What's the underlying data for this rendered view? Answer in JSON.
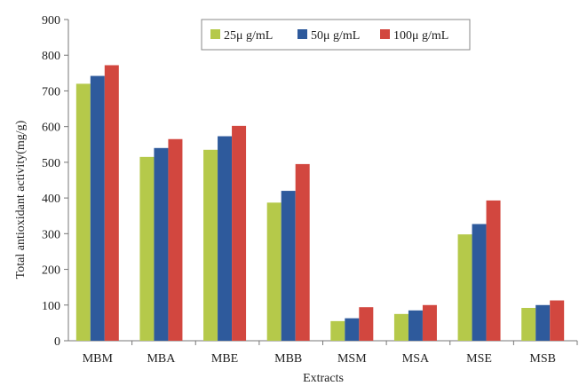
{
  "chart_data": {
    "type": "bar",
    "title": "",
    "xlabel": "Extracts",
    "ylabel": "Total antioxidant activity(mg/g)",
    "categories": [
      "MBM",
      "MBA",
      "MBE",
      "MBB",
      "MSM",
      "MSA",
      "MSE",
      "MSB"
    ],
    "series": [
      {
        "name": "25μ g/mL",
        "color": "#b5c94a",
        "values": [
          720,
          515,
          535,
          387,
          55,
          75,
          298,
          92
        ]
      },
      {
        "name": "50μ g/mL",
        "color": "#2e5a9c",
        "values": [
          742,
          540,
          573,
          420,
          63,
          85,
          327,
          100
        ]
      },
      {
        "name": "100μ g/mL",
        "color": "#d2473f",
        "values": [
          772,
          565,
          602,
          495,
          94,
          100,
          393,
          113
        ]
      }
    ],
    "ylim": [
      0,
      900
    ],
    "yticks": [
      0,
      100,
      200,
      300,
      400,
      500,
      600,
      700,
      800,
      900
    ],
    "grid": false,
    "legend_position": "top-center"
  }
}
